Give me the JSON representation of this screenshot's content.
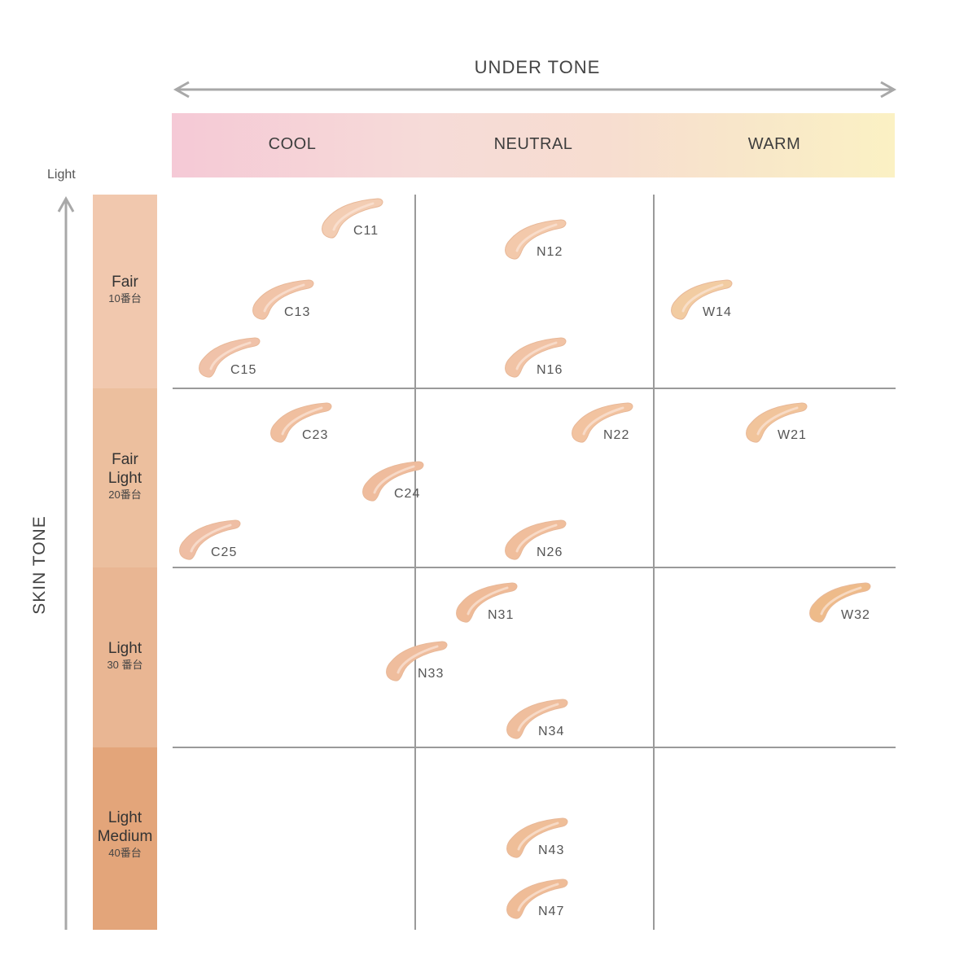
{
  "header": {
    "title": "UNDER TONE"
  },
  "undertones": [
    "COOL",
    "NEUTRAL",
    "WARM"
  ],
  "axis": {
    "top_label": "Light",
    "title": "SKIN TONE"
  },
  "skin_bands": [
    {
      "name_lines": [
        "Fair"
      ],
      "sub": "10番台",
      "color": "#f1c8ae"
    },
    {
      "name_lines": [
        "Fair",
        "Light"
      ],
      "sub": "20番台",
      "color": "#ecbf9e"
    },
    {
      "name_lines": [
        "Light"
      ],
      "sub": "30 番台",
      "color": "#e9b693"
    },
    {
      "name_lines": [
        "Light",
        "Medium"
      ],
      "sub": "40番台",
      "color": "#e3a57a"
    }
  ],
  "swatches": [
    {
      "label": "C11",
      "color": "#f3cdb3"
    },
    {
      "label": "N12",
      "color": "#f3c9ab"
    },
    {
      "label": "C13",
      "color": "#f1c4a8"
    },
    {
      "label": "W14",
      "color": "#f2cca2"
    },
    {
      "label": "C15",
      "color": "#f0c2a9"
    },
    {
      "label": "N16",
      "color": "#f1c3a5"
    },
    {
      "label": "C23",
      "color": "#f0bf9f"
    },
    {
      "label": "N22",
      "color": "#f2c3a0"
    },
    {
      "label": "W21",
      "color": "#f1c49b"
    },
    {
      "label": "C24",
      "color": "#efbc9d"
    },
    {
      "label": "C25",
      "color": "#efbea4"
    },
    {
      "label": "N26",
      "color": "#f0be9c"
    },
    {
      "label": "N31",
      "color": "#efbb98"
    },
    {
      "label": "W32",
      "color": "#eebb8a"
    },
    {
      "label": "N33",
      "color": "#efbd9d"
    },
    {
      "label": "N34",
      "color": "#efbe9d"
    },
    {
      "label": "N43",
      "color": "#efbe98"
    },
    {
      "label": "N47",
      "color": "#efbc97"
    }
  ]
}
